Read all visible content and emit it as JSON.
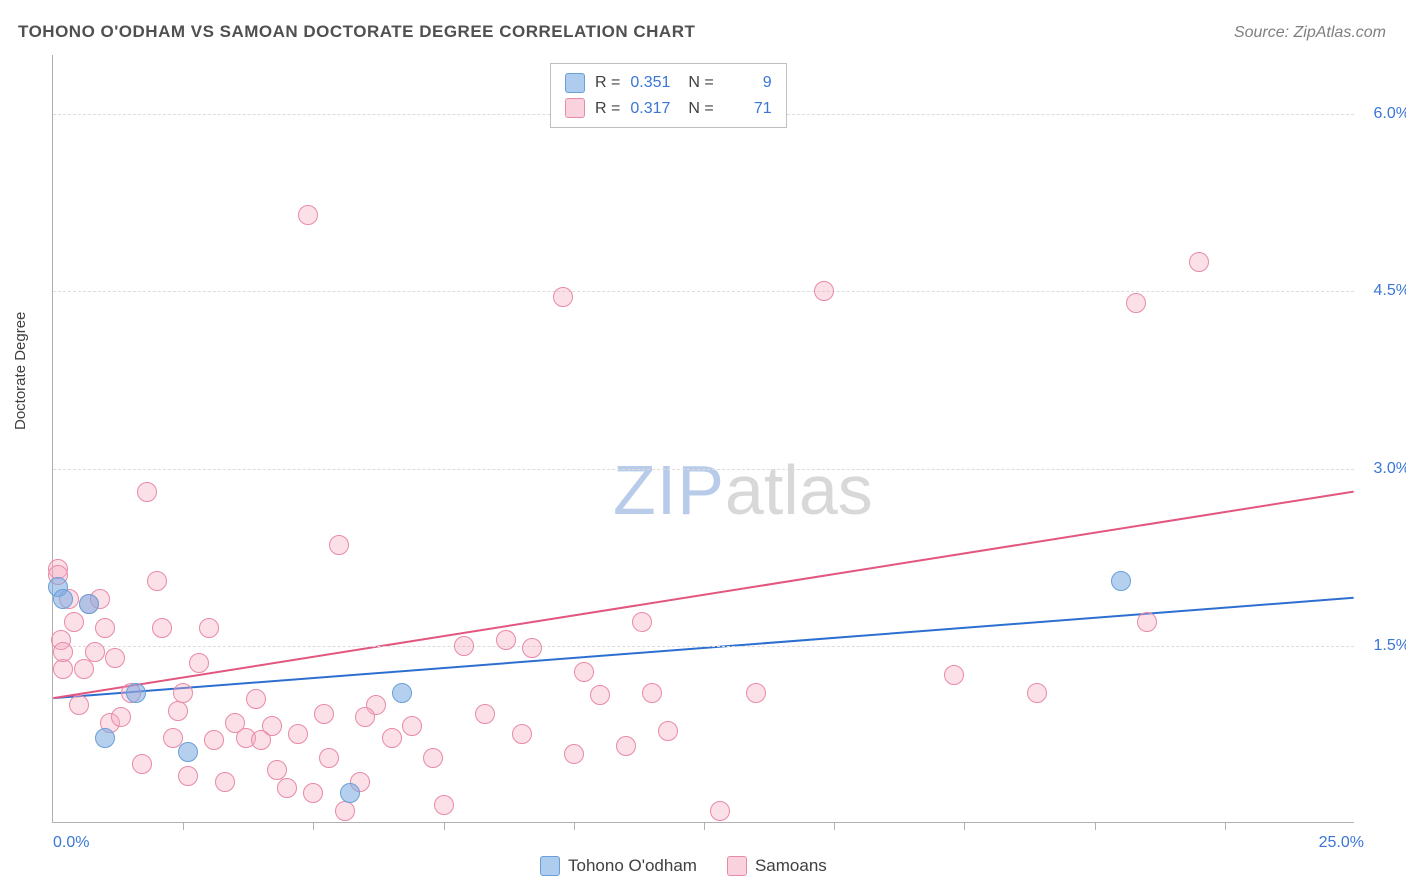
{
  "title": "TOHONO O'ODHAM VS SAMOAN DOCTORATE DEGREE CORRELATION CHART",
  "source_label": "Source: ZipAtlas.com",
  "ylabel": "Doctorate Degree",
  "watermark": {
    "zip": "ZIP",
    "atlas": "atlas"
  },
  "colors": {
    "blue_fill": "rgba(120,170,225,0.55)",
    "blue_stroke": "#6a9fd8",
    "pink_fill": "rgba(245,165,190,0.35)",
    "pink_stroke": "#e88aa8",
    "blue_line": "#2d6fd0",
    "pink_line": "#e2567f",
    "tick_text": "#3a76d6",
    "grid": "#dcdcdc"
  },
  "chart": {
    "type": "scatter",
    "xlim": [
      0,
      25
    ],
    "ylim": [
      0,
      6.5
    ],
    "yticks": [
      1.5,
      3.0,
      4.5,
      6.0
    ],
    "ytick_labels": [
      "1.5%",
      "3.0%",
      "4.5%",
      "6.0%"
    ],
    "xlabel_min": "0.0%",
    "xlabel_max": "25.0%",
    "xticks": [
      2.5,
      5.0,
      7.5,
      10.0,
      12.5,
      15.0,
      17.5,
      20.0,
      22.5
    ],
    "marker_size": 20,
    "series": [
      {
        "id": "tohono",
        "label": "Tohono O'odham",
        "color_key": "blue",
        "R": "0.351",
        "N": "9",
        "trend": {
          "y_at_x0": 1.05,
          "y_at_x25": 1.9
        },
        "points": [
          [
            0.1,
            2.0
          ],
          [
            0.2,
            1.9
          ],
          [
            0.7,
            1.85
          ],
          [
            1.0,
            0.72
          ],
          [
            1.6,
            1.1
          ],
          [
            2.6,
            0.6
          ],
          [
            5.7,
            0.25
          ],
          [
            6.7,
            1.1
          ],
          [
            20.5,
            2.05
          ]
        ]
      },
      {
        "id": "samoans",
        "label": "Samoans",
        "color_key": "pink",
        "R": "0.317",
        "N": "71",
        "trend": {
          "y_at_x0": 1.05,
          "y_at_x25": 2.8
        },
        "points": [
          [
            0.1,
            2.15
          ],
          [
            0.1,
            2.1
          ],
          [
            0.15,
            1.55
          ],
          [
            0.2,
            1.3
          ],
          [
            0.2,
            1.45
          ],
          [
            0.3,
            1.9
          ],
          [
            0.4,
            1.7
          ],
          [
            0.5,
            1.0
          ],
          [
            0.6,
            1.3
          ],
          [
            0.7,
            1.85
          ],
          [
            0.8,
            1.45
          ],
          [
            0.9,
            1.9
          ],
          [
            1.0,
            1.65
          ],
          [
            1.1,
            0.85
          ],
          [
            1.2,
            1.4
          ],
          [
            1.3,
            0.9
          ],
          [
            1.5,
            1.1
          ],
          [
            1.7,
            0.5
          ],
          [
            1.8,
            2.8
          ],
          [
            2.0,
            2.05
          ],
          [
            2.1,
            1.65
          ],
          [
            2.3,
            0.72
          ],
          [
            2.4,
            0.95
          ],
          [
            2.5,
            1.1
          ],
          [
            2.6,
            0.4
          ],
          [
            2.8,
            1.35
          ],
          [
            3.0,
            1.65
          ],
          [
            3.1,
            0.7
          ],
          [
            3.3,
            0.35
          ],
          [
            3.5,
            0.85
          ],
          [
            3.7,
            0.72
          ],
          [
            3.9,
            1.05
          ],
          [
            4.0,
            0.7
          ],
          [
            4.2,
            0.82
          ],
          [
            4.3,
            0.45
          ],
          [
            4.5,
            0.3
          ],
          [
            4.7,
            0.75
          ],
          [
            4.9,
            5.15
          ],
          [
            5.0,
            0.25
          ],
          [
            5.2,
            0.92
          ],
          [
            5.3,
            0.55
          ],
          [
            5.5,
            2.35
          ],
          [
            5.6,
            0.1
          ],
          [
            5.9,
            0.35
          ],
          [
            6.2,
            1.0
          ],
          [
            6.5,
            0.72
          ],
          [
            6.9,
            0.82
          ],
          [
            7.3,
            0.55
          ],
          [
            7.5,
            0.15
          ],
          [
            7.9,
            1.5
          ],
          [
            8.3,
            0.92
          ],
          [
            8.7,
            1.55
          ],
          [
            9.0,
            0.75
          ],
          [
            9.2,
            1.48
          ],
          [
            9.8,
            4.45
          ],
          [
            10.0,
            0.58
          ],
          [
            10.2,
            1.28
          ],
          [
            10.5,
            1.08
          ],
          [
            11.0,
            0.65
          ],
          [
            11.3,
            1.7
          ],
          [
            11.5,
            1.1
          ],
          [
            11.8,
            0.78
          ],
          [
            12.8,
            0.1
          ],
          [
            13.5,
            1.1
          ],
          [
            14.8,
            4.5
          ],
          [
            17.3,
            1.25
          ],
          [
            18.9,
            1.1
          ],
          [
            20.8,
            4.4
          ],
          [
            21.0,
            1.7
          ],
          [
            22.0,
            4.75
          ],
          [
            6.0,
            0.9
          ]
        ]
      }
    ]
  },
  "legend_stats": {
    "r_label": "R =",
    "n_label": "N ="
  }
}
